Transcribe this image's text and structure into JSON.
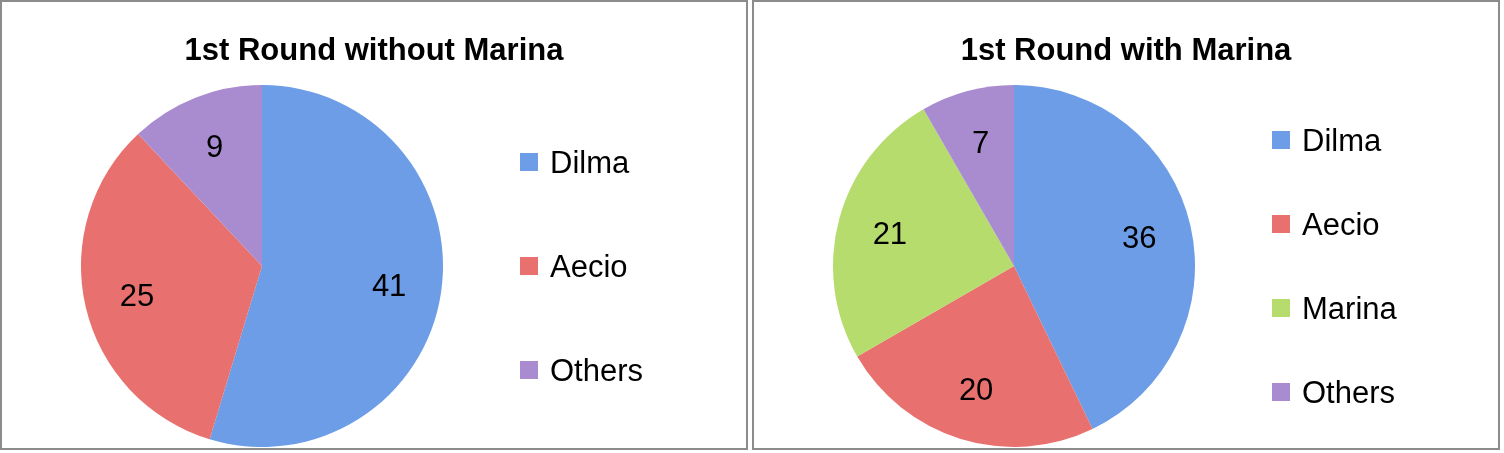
{
  "chart_data": [
    {
      "type": "pie",
      "title": "1st Round without Marina",
      "categories": [
        "Dilma",
        "Aecio",
        "Others"
      ],
      "values": [
        41,
        25,
        9
      ],
      "colors": [
        "#6c9de6",
        "#e8706e",
        "#a88ccf"
      ],
      "data_labels": true,
      "legend": "right"
    },
    {
      "type": "pie",
      "title": "1st Round with Marina",
      "categories": [
        "Dilma",
        "Aecio",
        "Marina",
        "Others"
      ],
      "values": [
        36,
        20,
        21,
        7
      ],
      "colors": [
        "#6c9de6",
        "#e8706e",
        "#b5dc6c",
        "#a88ccf"
      ],
      "data_labels": true,
      "legend": "right"
    }
  ]
}
